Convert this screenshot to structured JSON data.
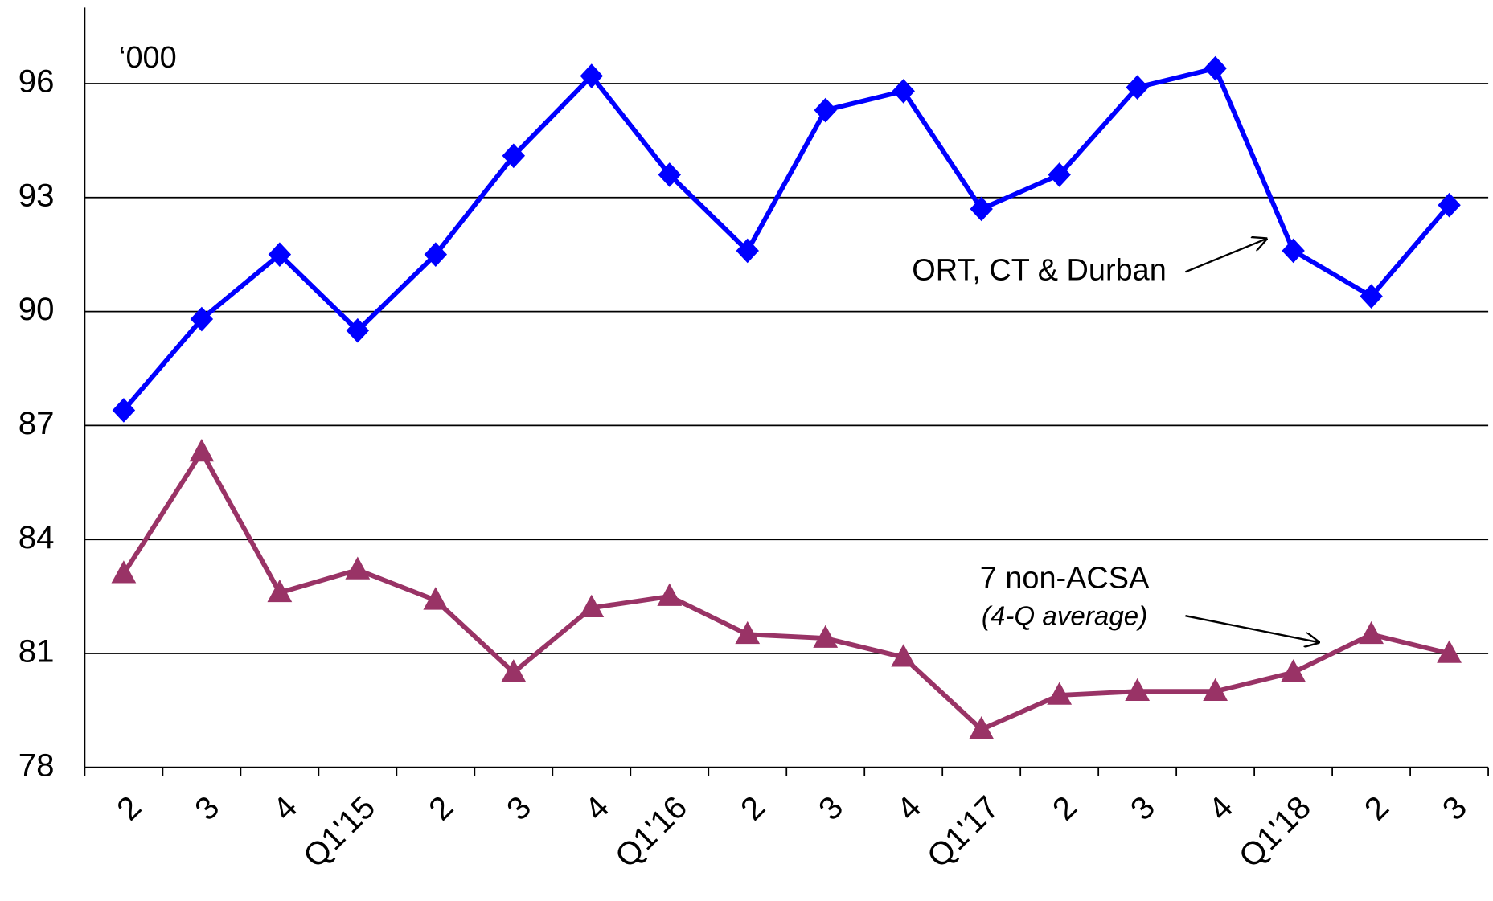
{
  "chart_data": {
    "type": "line",
    "y_unit_label": "‘000",
    "categories": [
      "2",
      "3",
      "4",
      "Q1'15",
      "2",
      "3",
      "4",
      "Q1'16",
      "2",
      "3",
      "4",
      "Q1'17",
      "2",
      "3",
      "4",
      "Q1'18",
      "2",
      "3"
    ],
    "series": [
      {
        "name": "ORT, CT & Durban",
        "color": "#0000ff",
        "marker": "diamond",
        "values": [
          87.4,
          89.8,
          91.5,
          89.5,
          91.5,
          94.1,
          96.2,
          93.6,
          91.6,
          95.3,
          95.8,
          92.7,
          93.6,
          95.9,
          96.4,
          91.6,
          90.4,
          92.8
        ]
      },
      {
        "name": "7 non-ACSA",
        "color": "#993366",
        "marker": "triangle",
        "values": [
          83.1,
          86.3,
          82.6,
          83.2,
          82.4,
          80.5,
          82.2,
          82.5,
          81.5,
          81.4,
          80.9,
          79.0,
          79.9,
          80.0,
          80.0,
          80.5,
          81.5,
          81.0
        ]
      }
    ],
    "annotations": [
      "(4-Q average)"
    ],
    "ylim": [
      78,
      98
    ],
    "yticks": [
      78,
      81,
      84,
      87,
      90,
      93,
      96
    ],
    "grid": true
  }
}
